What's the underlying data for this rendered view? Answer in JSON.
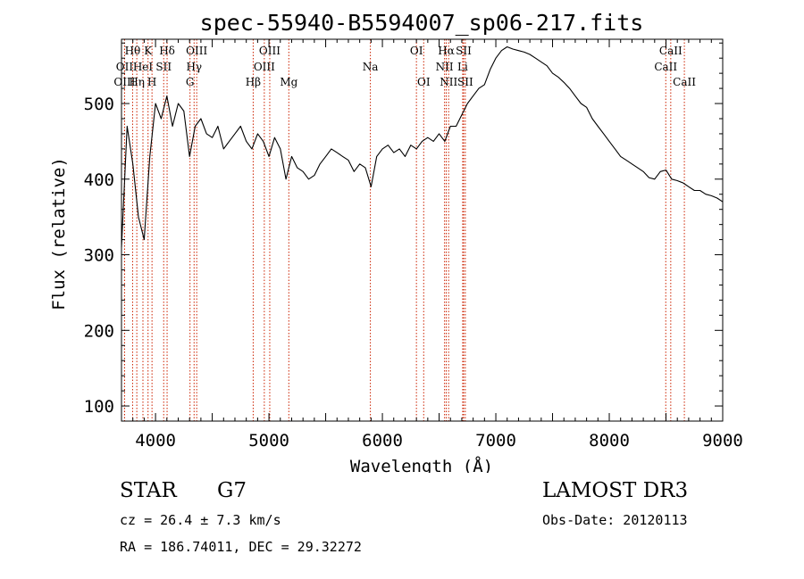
{
  "chart_data": {
    "type": "line",
    "title": "spec-55940-B5594007_sp06-217.fits",
    "xlabel": "Wavelength (Å)",
    "ylabel": "Flux (relative)",
    "xlim": [
      3700,
      9000
    ],
    "ylim": [
      80,
      585
    ],
    "grid": false,
    "x_ticks": [
      4000,
      5000,
      6000,
      7000,
      8000,
      9000
    ],
    "y_ticks": [
      100,
      200,
      300,
      400,
      500
    ],
    "series": [
      {
        "name": "flux",
        "x": [
          3700,
          3750,
          3800,
          3850,
          3900,
          3950,
          4000,
          4050,
          4100,
          4150,
          4200,
          4250,
          4300,
          4350,
          4400,
          4450,
          4500,
          4550,
          4600,
          4650,
          4700,
          4750,
          4800,
          4850,
          4900,
          4950,
          5000,
          5050,
          5100,
          5150,
          5200,
          5250,
          5300,
          5350,
          5400,
          5450,
          5500,
          5550,
          5600,
          5650,
          5700,
          5750,
          5800,
          5850,
          5900,
          5950,
          6000,
          6050,
          6100,
          6150,
          6200,
          6250,
          6300,
          6350,
          6400,
          6450,
          6500,
          6550,
          6600,
          6650,
          6700,
          6750,
          6800,
          6850,
          6900,
          6950,
          7000,
          7050,
          7100,
          7150,
          7200,
          7250,
          7300,
          7350,
          7400,
          7450,
          7500,
          7550,
          7600,
          7650,
          7700,
          7750,
          7800,
          7850,
          7900,
          7950,
          8000,
          8050,
          8100,
          8150,
          8200,
          8250,
          8300,
          8350,
          8400,
          8450,
          8500,
          8550,
          8600,
          8650,
          8700,
          8750,
          8800,
          8850,
          8900,
          8950,
          9000
        ],
        "values": [
          310,
          470,
          420,
          350,
          320,
          430,
          500,
          480,
          510,
          470,
          500,
          490,
          430,
          470,
          480,
          460,
          455,
          470,
          440,
          450,
          460,
          470,
          450,
          440,
          460,
          450,
          430,
          455,
          440,
          400,
          430,
          415,
          410,
          400,
          405,
          420,
          430,
          440,
          435,
          430,
          425,
          410,
          420,
          415,
          390,
          430,
          440,
          445,
          435,
          440,
          430,
          445,
          440,
          450,
          455,
          450,
          460,
          450,
          470,
          470,
          485,
          500,
          510,
          520,
          525,
          545,
          560,
          570,
          575,
          572,
          570,
          568,
          565,
          560,
          555,
          550,
          540,
          535,
          528,
          520,
          510,
          500,
          495,
          480,
          470,
          460,
          450,
          440,
          430,
          425,
          420,
          415,
          410,
          402,
          400,
          410,
          412,
          400,
          398,
          395,
          390,
          385,
          385,
          380,
          378,
          375,
          370
        ]
      }
    ],
    "spectral_lines": [
      {
        "label": "Hθ",
        "x": 3798,
        "row": 0
      },
      {
        "label": "OII",
        "x": 3727,
        "row": 1
      },
      {
        "label": "OIII",
        "x": 3727,
        "row": 2
      },
      {
        "label": "K",
        "x": 3934,
        "row": 0
      },
      {
        "label": "HeI",
        "x": 3889,
        "row": 1
      },
      {
        "label": "Hη",
        "x": 3835,
        "row": 2
      },
      {
        "label": "Hδ",
        "x": 4102,
        "row": 0
      },
      {
        "label": "SII",
        "x": 4072,
        "row": 1
      },
      {
        "label": "H",
        "x": 3969,
        "row": 2
      },
      {
        "label": "OIII",
        "x": 4363,
        "row": 0
      },
      {
        "label": "Hγ",
        "x": 4340,
        "row": 1
      },
      {
        "label": "G",
        "x": 4304,
        "row": 2
      },
      {
        "label": "OIII",
        "x": 5007,
        "row": 0
      },
      {
        "label": "OIII",
        "x": 4959,
        "row": 1
      },
      {
        "label": "Hβ",
        "x": 4861,
        "row": 2
      },
      {
        "label": "Mg",
        "x": 5175,
        "row": 2
      },
      {
        "label": "Na",
        "x": 5894,
        "row": 1
      },
      {
        "label": "OI",
        "x": 6300,
        "row": 0
      },
      {
        "label": "OI",
        "x": 6364,
        "row": 2
      },
      {
        "label": "Hα",
        "x": 6563,
        "row": 0
      },
      {
        "label": "SII",
        "x": 6716,
        "row": 0
      },
      {
        "label": "NII",
        "x": 6548,
        "row": 1
      },
      {
        "label": "Li",
        "x": 6708,
        "row": 1
      },
      {
        "label": "NII",
        "x": 6584,
        "row": 2
      },
      {
        "label": "SII",
        "x": 6731,
        "row": 2
      },
      {
        "label": "CaII",
        "x": 8542,
        "row": 0
      },
      {
        "label": "CaII",
        "x": 8498,
        "row": 1
      },
      {
        "label": "CaII",
        "x": 8662,
        "row": 2
      }
    ]
  },
  "info": {
    "class": "STAR",
    "subclass": "G7",
    "survey": "LAMOST DR3",
    "cz": "cz = 26.4 ± 7.3 km/s",
    "obs_date": "Obs-Date: 20120113",
    "radec": "RA = 186.74011, DEC =  29.32272"
  },
  "colors": {
    "line": "#000000",
    "marker": "#cc2200",
    "background": "#ffffff"
  }
}
